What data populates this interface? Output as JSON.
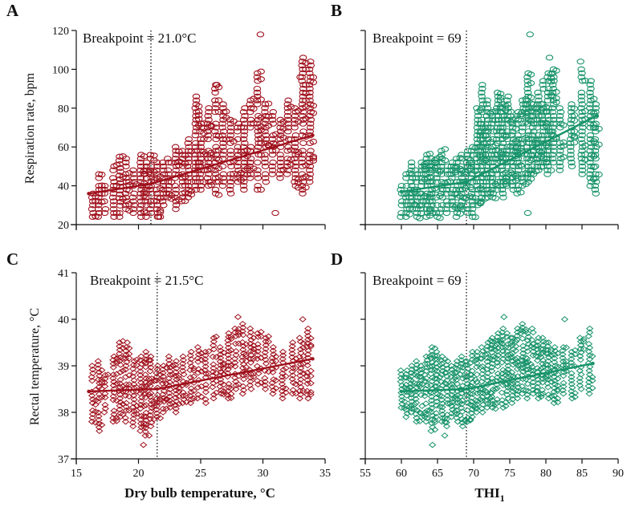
{
  "figure": {
    "shared_xlabel_left": "Dry bulb temperature, °C",
    "shared_xlabel_right_main": "THI",
    "shared_xlabel_right_sub": "1",
    "ylabel_top": "Respiration rate, bpm",
    "ylabel_bottom": "Rectal temperature, °C"
  },
  "colors": {
    "red": "#a0101c",
    "green": "#17936a"
  },
  "chart_data": [
    {
      "panel": "A",
      "type": "scatter",
      "breakpoint_label": "Breakpoint = 21.0°C",
      "breakpoint": 21.0,
      "xlim": [
        15,
        35
      ],
      "ylim": [
        20,
        120
      ],
      "xticks": [
        15,
        20,
        25,
        30,
        35
      ],
      "yticks": [
        20,
        40,
        60,
        80,
        100,
        120
      ],
      "show_xtick_labels": false,
      "show_ytick_labels": true,
      "color": "red",
      "marker": "circle",
      "fit_line": [
        [
          16,
          36
        ],
        [
          21.0,
          41
        ],
        [
          34,
          66
        ]
      ],
      "columns": [
        {
          "x": 16.3,
          "y": [
            24,
            36
          ]
        },
        {
          "x": 16.8,
          "y": [
            24,
            46
          ]
        },
        {
          "x": 17.3,
          "y": [
            26,
            40
          ]
        },
        {
          "x": 18.0,
          "y": [
            24,
            50
          ]
        },
        {
          "x": 18.5,
          "y": [
            24,
            55
          ]
        },
        {
          "x": 19.0,
          "y": [
            28,
            54
          ]
        },
        {
          "x": 19.6,
          "y": [
            26,
            48
          ]
        },
        {
          "x": 20.2,
          "y": [
            24,
            56
          ]
        },
        {
          "x": 20.6,
          "y": [
            24,
            52
          ]
        },
        {
          "x": 21.0,
          "y": [
            26,
            56
          ]
        },
        {
          "x": 21.5,
          "y": [
            24,
            52
          ]
        },
        {
          "x": 22.0,
          "y": [
            30,
            52
          ]
        },
        {
          "x": 22.4,
          "y": [
            34,
            54
          ]
        },
        {
          "x": 23.0,
          "y": [
            28,
            60
          ]
        },
        {
          "x": 23.5,
          "y": [
            32,
            58
          ]
        },
        {
          "x": 24.0,
          "y": [
            34,
            64
          ]
        },
        {
          "x": 24.6,
          "y": [
            38,
            86
          ]
        },
        {
          "x": 25.0,
          "y": [
            38,
            72
          ]
        },
        {
          "x": 25.6,
          "y": [
            40,
            80
          ]
        },
        {
          "x": 26.2,
          "y": [
            36,
            92
          ]
        },
        {
          "x": 26.8,
          "y": [
            40,
            82
          ]
        },
        {
          "x": 27.4,
          "y": [
            36,
            74
          ]
        },
        {
          "x": 28.0,
          "y": [
            42,
            72
          ]
        },
        {
          "x": 28.5,
          "y": [
            38,
            80
          ]
        },
        {
          "x": 29.0,
          "y": [
            44,
            84
          ]
        },
        {
          "x": 29.6,
          "y": [
            38,
            98
          ]
        },
        {
          "x": 30.2,
          "y": [
            42,
            82
          ]
        },
        {
          "x": 30.8,
          "y": [
            46,
            78
          ]
        },
        {
          "x": 31.4,
          "y": [
            44,
            74
          ]
        },
        {
          "x": 32.0,
          "y": [
            46,
            84
          ]
        },
        {
          "x": 32.6,
          "y": [
            40,
            80
          ]
        },
        {
          "x": 33.2,
          "y": [
            36,
            106
          ]
        },
        {
          "x": 33.8,
          "y": [
            42,
            104
          ]
        }
      ],
      "extra_points": [
        [
          29.8,
          118
        ],
        [
          31.0,
          26
        ],
        [
          26.3,
          92
        ],
        [
          21.6,
          24
        ],
        [
          33.0,
          96
        ]
      ]
    },
    {
      "panel": "B",
      "type": "scatter",
      "breakpoint_label": "Breakpoint = 69",
      "breakpoint": 69,
      "xlim": [
        55,
        90
      ],
      "ylim": [
        20,
        120
      ],
      "xticks": [
        55,
        60,
        65,
        70,
        75,
        80,
        85,
        90
      ],
      "yticks": [
        20,
        40,
        60,
        80,
        100,
        120
      ],
      "show_xtick_labels": false,
      "show_ytick_labels": false,
      "color": "green",
      "marker": "circle",
      "fit_line": [
        [
          60,
          37
        ],
        [
          69,
          42
        ],
        [
          87,
          76
        ]
      ],
      "columns": [
        {
          "x": 60.0,
          "y": [
            24,
            40
          ]
        },
        {
          "x": 60.7,
          "y": [
            24,
            46
          ]
        },
        {
          "x": 61.4,
          "y": [
            28,
            52
          ]
        },
        {
          "x": 62.1,
          "y": [
            24,
            48
          ]
        },
        {
          "x": 62.8,
          "y": [
            26,
            52
          ]
        },
        {
          "x": 63.5,
          "y": [
            24,
            56
          ]
        },
        {
          "x": 64.2,
          "y": [
            26,
            54
          ]
        },
        {
          "x": 64.9,
          "y": [
            24,
            54
          ]
        },
        {
          "x": 65.6,
          "y": [
            28,
            58
          ]
        },
        {
          "x": 66.3,
          "y": [
            26,
            50
          ]
        },
        {
          "x": 67.0,
          "y": [
            28,
            52
          ]
        },
        {
          "x": 67.7,
          "y": [
            24,
            54
          ]
        },
        {
          "x": 68.4,
          "y": [
            28,
            56
          ]
        },
        {
          "x": 69.1,
          "y": [
            26,
            58
          ]
        },
        {
          "x": 69.8,
          "y": [
            24,
            60
          ]
        },
        {
          "x": 70.5,
          "y": [
            30,
            80
          ]
        },
        {
          "x": 71.2,
          "y": [
            32,
            92
          ]
        },
        {
          "x": 71.9,
          "y": [
            34,
            84
          ]
        },
        {
          "x": 72.6,
          "y": [
            34,
            78
          ]
        },
        {
          "x": 73.3,
          "y": [
            38,
            88
          ]
        },
        {
          "x": 74.0,
          "y": [
            34,
            82
          ]
        },
        {
          "x": 74.7,
          "y": [
            40,
            86
          ]
        },
        {
          "x": 75.4,
          "y": [
            38,
            74
          ]
        },
        {
          "x": 76.1,
          "y": [
            36,
            78
          ]
        },
        {
          "x": 76.8,
          "y": [
            40,
            84
          ]
        },
        {
          "x": 77.5,
          "y": [
            42,
            98
          ]
        },
        {
          "x": 78.2,
          "y": [
            46,
            82
          ]
        },
        {
          "x": 78.9,
          "y": [
            48,
            88
          ]
        },
        {
          "x": 79.6,
          "y": [
            50,
            94
          ]
        },
        {
          "x": 80.3,
          "y": [
            46,
            98
          ]
        },
        {
          "x": 81.0,
          "y": [
            52,
            100
          ]
        },
        {
          "x": 82.0,
          "y": [
            48,
            80
          ]
        },
        {
          "x": 83.5,
          "y": [
            50,
            82
          ]
        },
        {
          "x": 85.0,
          "y": [
            46,
            100
          ]
        },
        {
          "x": 86.2,
          "y": [
            40,
            94
          ]
        },
        {
          "x": 86.9,
          "y": [
            36,
            82
          ]
        }
      ],
      "extra_points": [
        [
          77.8,
          118
        ],
        [
          80.5,
          106
        ],
        [
          84.8,
          104
        ],
        [
          77.5,
          26
        ]
      ]
    },
    {
      "panel": "C",
      "type": "scatter",
      "breakpoint_label": "Breakpoint = 21.5°C",
      "breakpoint": 21.5,
      "xlim": [
        15,
        35
      ],
      "ylim": [
        37,
        41
      ],
      "xticks": [
        15,
        20,
        25,
        30,
        35
      ],
      "yticks": [
        37,
        38,
        39,
        40,
        41
      ],
      "show_xtick_labels": true,
      "show_ytick_labels": true,
      "color": "red",
      "marker": "diamond",
      "fit_line": [
        [
          16,
          38.45
        ],
        [
          21.5,
          38.5
        ],
        [
          34,
          39.15
        ]
      ],
      "columns": [
        {
          "x": 16.3,
          "y": [
            37.8,
            39.0
          ]
        },
        {
          "x": 16.8,
          "y": [
            37.6,
            39.1
          ]
        },
        {
          "x": 17.3,
          "y": [
            38.0,
            38.8
          ]
        },
        {
          "x": 18.0,
          "y": [
            37.8,
            39.2
          ]
        },
        {
          "x": 18.5,
          "y": [
            37.9,
            39.5
          ]
        },
        {
          "x": 19.0,
          "y": [
            37.8,
            39.4
          ]
        },
        {
          "x": 19.6,
          "y": [
            37.7,
            39.1
          ]
        },
        {
          "x": 20.2,
          "y": [
            37.6,
            39.2
          ]
        },
        {
          "x": 20.6,
          "y": [
            37.5,
            39.3
          ]
        },
        {
          "x": 21.0,
          "y": [
            37.7,
            39.2
          ]
        },
        {
          "x": 21.5,
          "y": [
            37.9,
            39.0
          ]
        },
        {
          "x": 22.0,
          "y": [
            38.0,
            39.0
          ]
        },
        {
          "x": 22.5,
          "y": [
            38.1,
            39.2
          ]
        },
        {
          "x": 23.0,
          "y": [
            38.0,
            39.1
          ]
        },
        {
          "x": 23.6,
          "y": [
            38.2,
            39.2
          ]
        },
        {
          "x": 24.2,
          "y": [
            38.2,
            39.3
          ]
        },
        {
          "x": 24.8,
          "y": [
            38.3,
            39.4
          ]
        },
        {
          "x": 25.4,
          "y": [
            38.2,
            39.3
          ]
        },
        {
          "x": 26.0,
          "y": [
            38.3,
            39.6
          ]
        },
        {
          "x": 26.6,
          "y": [
            38.4,
            39.4
          ]
        },
        {
          "x": 27.2,
          "y": [
            38.3,
            39.7
          ]
        },
        {
          "x": 27.8,
          "y": [
            38.5,
            39.8
          ]
        },
        {
          "x": 28.4,
          "y": [
            38.4,
            39.9
          ]
        },
        {
          "x": 29.0,
          "y": [
            38.5,
            39.8
          ]
        },
        {
          "x": 29.6,
          "y": [
            38.6,
            39.7
          ]
        },
        {
          "x": 30.2,
          "y": [
            38.5,
            39.6
          ]
        },
        {
          "x": 30.8,
          "y": [
            38.4,
            39.4
          ]
        },
        {
          "x": 31.6,
          "y": [
            38.3,
            39.3
          ]
        },
        {
          "x": 32.4,
          "y": [
            38.4,
            39.5
          ]
        },
        {
          "x": 33.0,
          "y": [
            38.3,
            39.6
          ]
        },
        {
          "x": 33.6,
          "y": [
            38.3,
            39.8
          ]
        }
      ],
      "extra_points": [
        [
          28.0,
          40.05
        ],
        [
          33.2,
          40.0
        ],
        [
          20.4,
          37.3
        ],
        [
          19.1,
          39.5
        ]
      ]
    },
    {
      "panel": "D",
      "type": "scatter",
      "breakpoint_label": "Breakpoint = 69",
      "breakpoint": 69,
      "xlim": [
        55,
        90
      ],
      "ylim": [
        37,
        41
      ],
      "xticks": [
        55,
        60,
        65,
        70,
        75,
        80,
        85,
        90
      ],
      "yticks": [
        37,
        38,
        39,
        40,
        41
      ],
      "show_xtick_labels": true,
      "show_ytick_labels": false,
      "color": "green",
      "marker": "diamond",
      "fit_line": [
        [
          60,
          38.45
        ],
        [
          69,
          38.5
        ],
        [
          86.5,
          39.05
        ]
      ],
      "columns": [
        {
          "x": 60.0,
          "y": [
            38.1,
            38.9
          ]
        },
        {
          "x": 60.7,
          "y": [
            37.9,
            38.9
          ]
        },
        {
          "x": 61.4,
          "y": [
            38.0,
            39.0
          ]
        },
        {
          "x": 62.1,
          "y": [
            37.8,
            39.1
          ]
        },
        {
          "x": 62.8,
          "y": [
            37.9,
            39.0
          ]
        },
        {
          "x": 63.5,
          "y": [
            37.8,
            39.2
          ]
        },
        {
          "x": 64.2,
          "y": [
            37.6,
            39.4
          ]
        },
        {
          "x": 64.9,
          "y": [
            37.9,
            39.3
          ]
        },
        {
          "x": 65.6,
          "y": [
            37.8,
            39.2
          ]
        },
        {
          "x": 66.3,
          "y": [
            37.7,
            39.1
          ]
        },
        {
          "x": 67.0,
          "y": [
            37.9,
            39.0
          ]
        },
        {
          "x": 67.7,
          "y": [
            37.8,
            39.1
          ]
        },
        {
          "x": 68.4,
          "y": [
            37.7,
            39.2
          ]
        },
        {
          "x": 69.1,
          "y": [
            37.8,
            39.1
          ]
        },
        {
          "x": 69.8,
          "y": [
            37.9,
            39.3
          ]
        },
        {
          "x": 70.5,
          "y": [
            38.0,
            39.3
          ]
        },
        {
          "x": 71.2,
          "y": [
            38.0,
            39.4
          ]
        },
        {
          "x": 71.9,
          "y": [
            38.1,
            39.5
          ]
        },
        {
          "x": 72.6,
          "y": [
            38.1,
            39.6
          ]
        },
        {
          "x": 73.3,
          "y": [
            38.2,
            39.7
          ]
        },
        {
          "x": 74.0,
          "y": [
            38.1,
            39.8
          ]
        },
        {
          "x": 74.7,
          "y": [
            38.3,
            39.7
          ]
        },
        {
          "x": 75.4,
          "y": [
            38.2,
            39.6
          ]
        },
        {
          "x": 76.1,
          "y": [
            38.3,
            39.8
          ]
        },
        {
          "x": 76.8,
          "y": [
            38.4,
            39.9
          ]
        },
        {
          "x": 77.5,
          "y": [
            38.3,
            39.7
          ]
        },
        {
          "x": 78.2,
          "y": [
            38.4,
            39.8
          ]
        },
        {
          "x": 78.9,
          "y": [
            38.3,
            39.6
          ]
        },
        {
          "x": 79.6,
          "y": [
            38.4,
            39.6
          ]
        },
        {
          "x": 80.3,
          "y": [
            38.3,
            39.5
          ]
        },
        {
          "x": 81.2,
          "y": [
            38.2,
            39.4
          ]
        },
        {
          "x": 82.4,
          "y": [
            38.4,
            39.4
          ]
        },
        {
          "x": 83.6,
          "y": [
            38.3,
            39.3
          ]
        },
        {
          "x": 84.8,
          "y": [
            38.5,
            39.6
          ]
        },
        {
          "x": 86.0,
          "y": [
            38.4,
            39.8
          ]
        }
      ],
      "extra_points": [
        [
          74.2,
          40.05
        ],
        [
          82.6,
          40.0
        ],
        [
          64.3,
          37.3
        ],
        [
          66.0,
          37.5
        ]
      ]
    }
  ]
}
